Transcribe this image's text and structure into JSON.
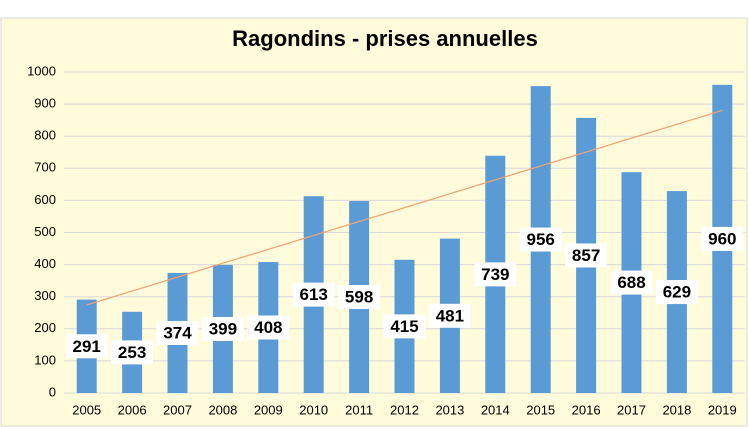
{
  "chart_data": {
    "type": "bar",
    "title": "Ragondins - prises annuelles",
    "categories": [
      "2005",
      "2006",
      "2007",
      "2008",
      "2009",
      "2010",
      "2011",
      "2012",
      "2013",
      "2014",
      "2015",
      "2016",
      "2017",
      "2018",
      "2019"
    ],
    "values": [
      291,
      253,
      374,
      399,
      408,
      613,
      598,
      415,
      481,
      739,
      956,
      857,
      688,
      629,
      960
    ],
    "color": "#5b9bd5",
    "ylim": [
      0,
      1000
    ],
    "yticks": [
      0,
      100,
      200,
      300,
      400,
      500,
      600,
      700,
      800,
      900,
      1000
    ],
    "grid": true,
    "trendline": "linear",
    "trendline_color": "#f4a070"
  }
}
